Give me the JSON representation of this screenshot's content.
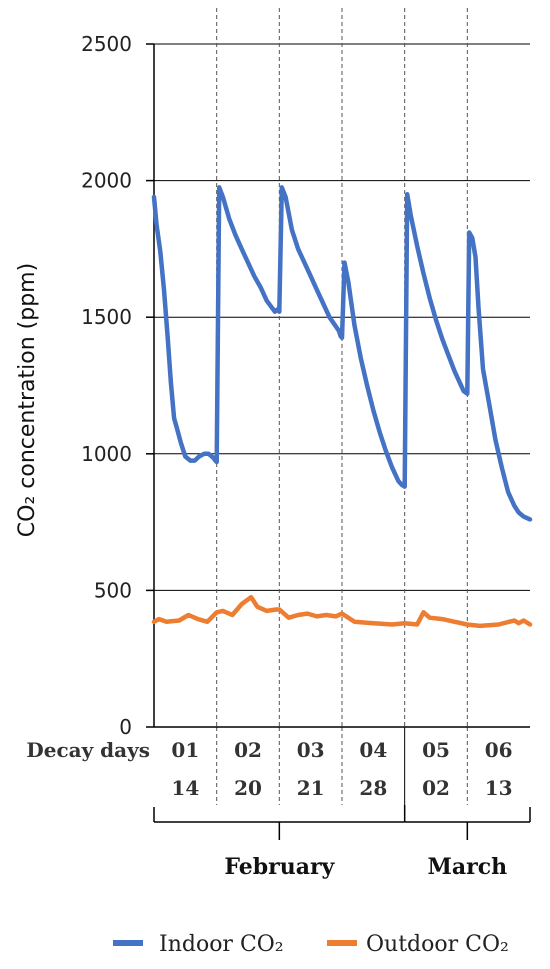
{
  "chart_data": {
    "type": "line",
    "ylabel": "CO₂ concentration (ppm)",
    "ylim": [
      0,
      2500
    ],
    "yticks": [
      0,
      500,
      1000,
      1500,
      2000,
      2500
    ],
    "grid": "horizontal",
    "row_label": "Decay days",
    "decay_days": [
      "01",
      "02",
      "03",
      "04",
      "05",
      "06"
    ],
    "dates": [
      "14",
      "20",
      "21",
      "28",
      "02",
      "13"
    ],
    "months": [
      {
        "label": "February",
        "days": [
          "01",
          "02",
          "03",
          "04"
        ]
      },
      {
        "label": "March",
        "days": [
          "05",
          "06"
        ]
      }
    ],
    "legend_position": "bottom",
    "series": [
      {
        "name": "Indoor CO₂",
        "color": "#4472C4",
        "x": [
          0.0,
          0.04,
          0.1,
          0.16,
          0.22,
          0.27,
          0.32,
          0.37,
          0.43,
          0.5,
          0.58,
          0.65,
          0.72,
          0.8,
          0.87,
          0.95,
          0.98,
          1.0,
          1.04,
          1.1,
          1.2,
          1.3,
          1.4,
          1.5,
          1.6,
          1.7,
          1.8,
          1.93,
          1.98,
          2.0,
          2.04,
          2.1,
          2.2,
          2.3,
          2.4,
          2.5,
          2.6,
          2.7,
          2.8,
          2.95,
          2.98,
          3.0,
          3.04,
          3.1,
          3.2,
          3.3,
          3.4,
          3.5,
          3.6,
          3.7,
          3.8,
          3.9,
          3.96,
          4.0,
          4.04,
          4.1,
          4.2,
          4.3,
          4.4,
          4.5,
          4.6,
          4.7,
          4.8,
          4.9,
          4.94,
          5.0,
          5.03,
          5.08,
          5.13,
          5.18,
          5.25,
          5.35,
          5.45,
          5.55,
          5.65,
          5.75,
          5.82,
          5.9,
          6.0
        ],
        "y": [
          1940,
          1840,
          1740,
          1600,
          1420,
          1260,
          1130,
          1090,
          1040,
          990,
          975,
          975,
          990,
          1000,
          1000,
          985,
          975,
          970,
          1975,
          1940,
          1860,
          1800,
          1750,
          1700,
          1650,
          1610,
          1560,
          1520,
          1530,
          1520,
          1975,
          1940,
          1820,
          1750,
          1700,
          1650,
          1600,
          1550,
          1500,
          1450,
          1430,
          1425,
          1700,
          1630,
          1470,
          1350,
          1250,
          1160,
          1080,
          1010,
          950,
          900,
          885,
          880,
          1950,
          1870,
          1760,
          1660,
          1570,
          1490,
          1420,
          1360,
          1300,
          1250,
          1230,
          1220,
          1810,
          1790,
          1720,
          1530,
          1310,
          1180,
          1050,
          950,
          860,
          810,
          785,
          770,
          760
        ]
      },
      {
        "name": "Outdoor CO₂",
        "color": "#ED7D31",
        "x": [
          0.0,
          0.08,
          0.2,
          0.4,
          0.55,
          0.7,
          0.85,
          1.0,
          1.1,
          1.25,
          1.4,
          1.55,
          1.65,
          1.8,
          1.95,
          2.0,
          2.15,
          2.3,
          2.45,
          2.6,
          2.75,
          2.9,
          3.0,
          3.2,
          3.5,
          3.8,
          4.0,
          4.2,
          4.3,
          4.4,
          4.6,
          4.8,
          5.0,
          5.2,
          5.5,
          5.75,
          5.82,
          5.9,
          6.0
        ],
        "y": [
          385,
          395,
          385,
          390,
          410,
          395,
          385,
          420,
          425,
          410,
          450,
          475,
          440,
          425,
          430,
          430,
          400,
          410,
          415,
          405,
          410,
          405,
          415,
          385,
          380,
          375,
          380,
          375,
          420,
          400,
          395,
          385,
          375,
          370,
          375,
          390,
          380,
          390,
          375
        ]
      }
    ]
  }
}
